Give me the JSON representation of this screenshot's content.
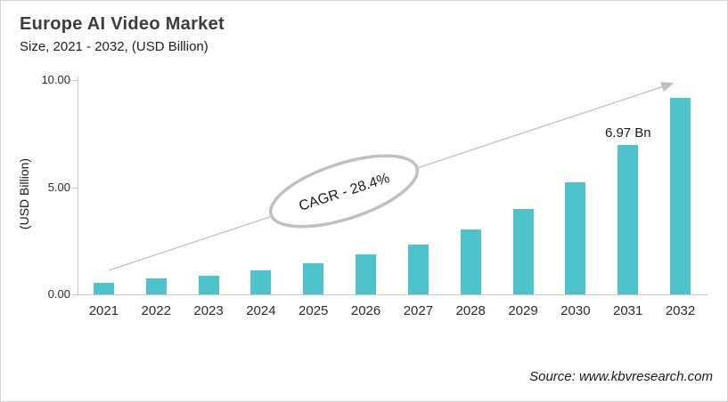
{
  "header": {
    "title": "Europe AI Video Market",
    "subtitle": "Size, 2021 - 2032, (USD Billion)"
  },
  "chart_data": {
    "type": "bar",
    "title": "Europe AI Video Market Size, 2021 - 2032, (USD Billion)",
    "categories": [
      "2021",
      "2022",
      "2023",
      "2024",
      "2025",
      "2026",
      "2027",
      "2028",
      "2029",
      "2030",
      "2031",
      "2032"
    ],
    "values": [
      0.55,
      0.73,
      0.88,
      1.12,
      1.47,
      1.85,
      2.34,
      3.05,
      4.0,
      5.25,
      6.97,
      9.17
    ],
    "xlabel": "",
    "ylabel": "(USD Billion)",
    "ylim": [
      0,
      10
    ],
    "yticks": [
      {
        "value": 0,
        "label": "0.00"
      },
      {
        "value": 5,
        "label": "5.00"
      },
      {
        "value": 10,
        "label": "10.00"
      }
    ],
    "grid": false,
    "legend": false,
    "bar_color": "#4EC3CB",
    "annotations": {
      "cagr": "CAGR - 28.4%",
      "bar_label": {
        "category": "2031",
        "text": "6.97 Bn"
      },
      "trend_arrow": true
    }
  },
  "footer": {
    "source": "Source: www.kbvresearch.com"
  },
  "colors": {
    "bar": "#4EC3CB",
    "trend_line": "#BFBFBF",
    "ellipse_stroke": "#C0C0C0",
    "axis": "#C8C8C8",
    "title_text": "#3C3C3C"
  }
}
